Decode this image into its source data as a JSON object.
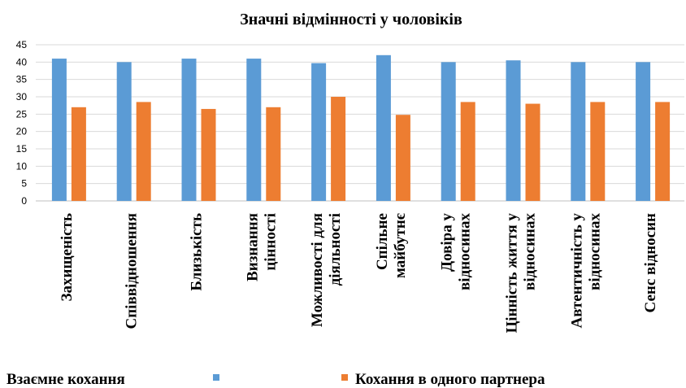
{
  "chart_data": {
    "type": "bar",
    "title": "Значні відмінності у чоловіків",
    "ylim": [
      0,
      45
    ],
    "yticks": [
      0,
      5,
      10,
      15,
      20,
      25,
      30,
      35,
      40,
      45
    ],
    "grid": true,
    "legend_position": "bottom",
    "categories": [
      [
        "Захищеність"
      ],
      [
        "Співвідношення"
      ],
      [
        "Близькість"
      ],
      [
        "Визнання",
        "цінності"
      ],
      [
        "Можливості для",
        "діяльності"
      ],
      [
        "Спільне",
        "майбутнє"
      ],
      [
        "Довіра у",
        "відносинах"
      ],
      [
        "Цінність життя у",
        "відносинах"
      ],
      [
        "Автентичність у",
        "відносинах"
      ],
      [
        "Сенс відносин"
      ]
    ],
    "series": [
      {
        "name": "Взаємне кохання",
        "color": "#5B9BD5",
        "values": [
          41,
          40,
          41,
          41,
          39.7,
          42,
          40,
          40.5,
          40,
          40
        ]
      },
      {
        "name": "Кохання в одного партнера",
        "color": "#ED7D31",
        "values": [
          27,
          28.5,
          26.5,
          27,
          30,
          24.8,
          28.5,
          28,
          28.5,
          28.5
        ]
      }
    ]
  }
}
